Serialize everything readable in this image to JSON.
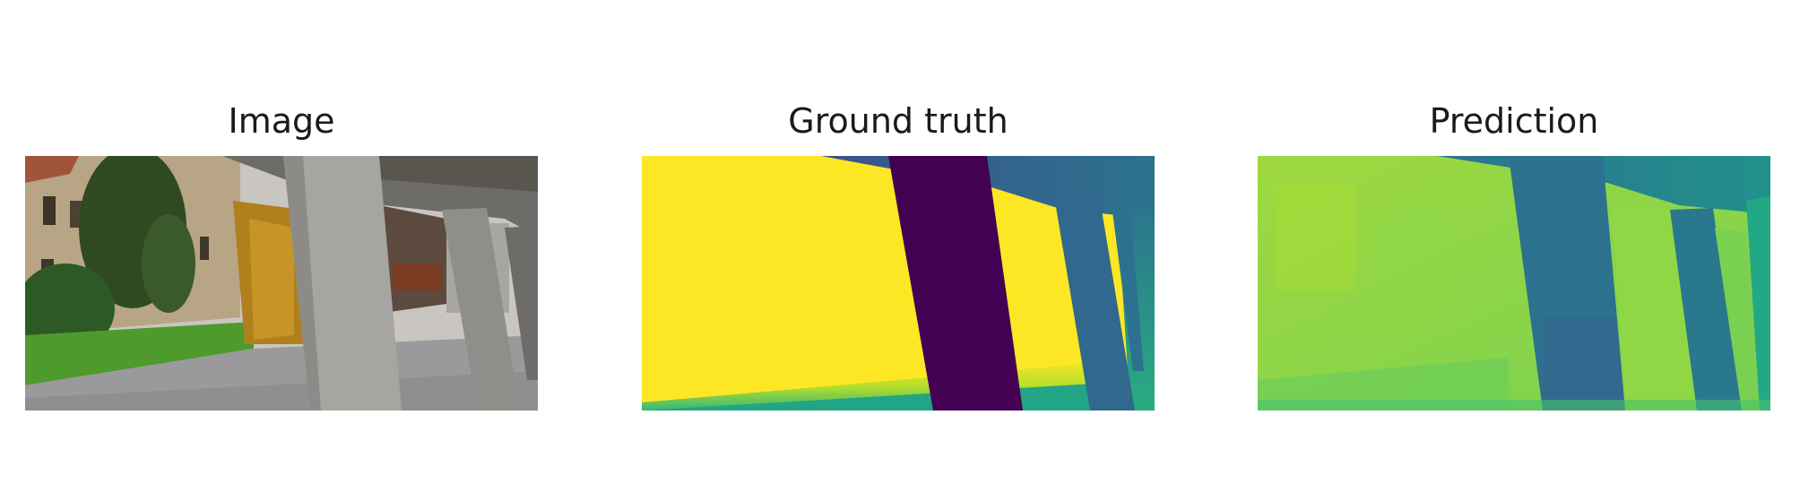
{
  "panels": [
    {
      "title": "Image",
      "kind": "rgb-photo"
    },
    {
      "title": "Ground truth",
      "kind": "depth-map",
      "colormap": "viridis"
    },
    {
      "title": "Prediction",
      "kind": "depth-map",
      "colormap": "viridis"
    }
  ],
  "colors": {
    "viridis_high": "#fde725",
    "viridis_mid": "#21918c",
    "viridis_low": "#440154"
  }
}
